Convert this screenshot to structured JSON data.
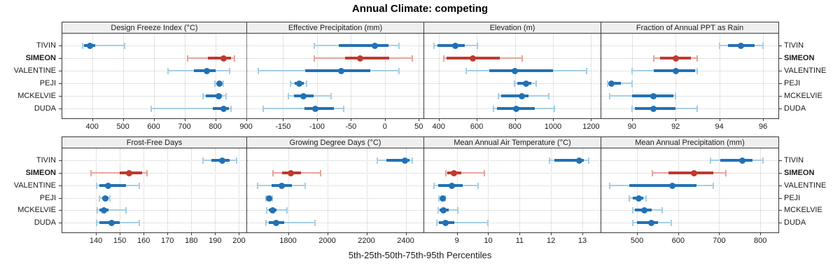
{
  "title": "Annual Climate: competing",
  "footer": "5th-25th-50th-75th-95th Percentiles",
  "percentile_keys": [
    "p5",
    "p25",
    "p50",
    "p75",
    "p95"
  ],
  "sites": [
    {
      "name": "TIVIN",
      "bold": false,
      "highlight": false
    },
    {
      "name": "SIMEON",
      "bold": true,
      "highlight": true
    },
    {
      "name": "VALENTINE",
      "bold": false,
      "highlight": false
    },
    {
      "name": "PEJI",
      "bold": false,
      "highlight": false
    },
    {
      "name": "MCKELVIE",
      "bold": false,
      "highlight": false
    },
    {
      "name": "DUDA",
      "bold": false,
      "highlight": false
    }
  ],
  "colors": {
    "blue": "#2171b5",
    "blue_light": "#a6cee3",
    "red": "#bf3a2e",
    "red_light": "#e4a59d",
    "grid": "#c9c9c9",
    "border": "#3a3a3a",
    "header_bg": "#efefef",
    "text": "#1a1a1a"
  },
  "chart_data": [
    {
      "type": "dot-whisker",
      "title": "Design Freeze Index (°C)",
      "xlim": [
        303,
        901
      ],
      "ticks": [
        400,
        500,
        600,
        700,
        800,
        900
      ],
      "series": [
        {
          "site": "TIVIN",
          "values": [
            368,
            373,
            392,
            409,
            505
          ]
        },
        {
          "site": "SIMEON",
          "values": [
            710,
            775,
            828,
            850,
            862
          ]
        },
        {
          "site": "VALENTINE",
          "values": [
            647,
            731,
            772,
            802,
            847
          ]
        },
        {
          "site": "PEJI",
          "values": [
            798,
            806,
            814,
            820,
            825
          ]
        },
        {
          "site": "MCKELVIE",
          "values": [
            760,
            770,
            811,
            821,
            835
          ]
        },
        {
          "site": "DUDA",
          "values": [
            592,
            791,
            827,
            844,
            851
          ]
        }
      ]
    },
    {
      "type": "dot-whisker",
      "title": "Effective Precipitation (mm)",
      "xlim": [
        -203,
        57
      ],
      "ticks": [
        -150,
        -100,
        -50,
        0,
        50
      ],
      "series": [
        {
          "site": "TIVIN",
          "values": [
            -104,
            -68,
            -15,
            5,
            21
          ]
        },
        {
          "site": "SIMEON",
          "values": [
            -104,
            -59,
            -36,
            6,
            41
          ]
        },
        {
          "site": "VALENTINE",
          "values": [
            -187,
            -117,
            -64,
            -21,
            21
          ]
        },
        {
          "site": "PEJI",
          "values": [
            -139,
            -133,
            -126,
            -119,
            -115
          ]
        },
        {
          "site": "MCKELVIE",
          "values": [
            -142,
            -134,
            -120,
            -105,
            -79
          ]
        },
        {
          "site": "DUDA",
          "values": [
            -179,
            -118,
            -102,
            -75,
            -61
          ]
        }
      ]
    },
    {
      "type": "dot-whisker",
      "title": "Elevation (m)",
      "xlim": [
        324,
        1250
      ],
      "ticks": [
        400,
        600,
        800,
        1000,
        1200
      ],
      "series": [
        {
          "site": "TIVIN",
          "values": [
            376,
            392,
            487,
            538,
            602
          ]
        },
        {
          "site": "SIMEON",
          "values": [
            428,
            442,
            581,
            721,
            837
          ]
        },
        {
          "site": "VALENTINE",
          "values": [
            546,
            666,
            800,
            1001,
            1178
          ]
        },
        {
          "site": "PEJI",
          "values": [
            798,
            812,
            857,
            885,
            912
          ]
        },
        {
          "site": "MCKELVIE",
          "values": [
            712,
            727,
            837,
            873,
            977
          ]
        },
        {
          "site": "DUDA",
          "values": [
            688,
            705,
            806,
            903,
            1007
          ]
        }
      ]
    },
    {
      "type": "dot-whisker",
      "title": "Fraction of Annual PPT as Rain",
      "xlim": [
        88.6,
        96.7
      ],
      "ticks": [
        90,
        92,
        94,
        96
      ],
      "series": [
        {
          "site": "TIVIN",
          "values": [
            94,
            94.4,
            95,
            95.6,
            96
          ]
        },
        {
          "site": "SIMEON",
          "values": [
            91,
            91.3,
            92,
            92.7,
            93
          ]
        },
        {
          "site": "VALENTINE",
          "values": [
            90,
            91,
            92,
            92.9,
            93
          ]
        },
        {
          "site": "PEJI",
          "values": [
            88.9,
            88.95,
            89.05,
            89.5,
            90
          ]
        },
        {
          "site": "MCKELVIE",
          "values": [
            89,
            90,
            91,
            91.9,
            92
          ]
        },
        {
          "site": "DUDA",
          "values": [
            90,
            90.15,
            91,
            92,
            93
          ]
        }
      ]
    },
    {
      "type": "dot-whisker",
      "title": "Frost-Free Days",
      "xlim": [
        125.9,
        203.1
      ],
      "ticks": [
        140,
        150,
        160,
        170,
        180,
        190,
        200
      ],
      "series": [
        {
          "site": "TIVIN",
          "values": [
            185,
            188.5,
            193,
            196,
            199
          ]
        },
        {
          "site": "SIMEON",
          "values": [
            138,
            150,
            154,
            159.5,
            161.5
          ]
        },
        {
          "site": "VALENTINE",
          "values": [
            140.3,
            141.5,
            145,
            152.5,
            158.3
          ]
        },
        {
          "site": "PEJI",
          "values": [
            141.5,
            142.5,
            144,
            145.4,
            146
          ]
        },
        {
          "site": "MCKELVIE",
          "values": [
            140.5,
            141.5,
            143.4,
            145.4,
            152.5
          ]
        },
        {
          "site": "DUDA",
          "values": [
            140.3,
            141.5,
            146.5,
            150,
            158.3
          ]
        }
      ]
    },
    {
      "type": "dot-whisker",
      "title": "Growing Degree Days (°C)",
      "xlim": [
        1591,
        2491
      ],
      "ticks": [
        1800,
        2000,
        2200,
        2400
      ],
      "series": [
        {
          "site": "TIVIN",
          "values": [
            2256,
            2302,
            2398,
            2420,
            2433
          ]
        },
        {
          "site": "SIMEON",
          "values": [
            1723,
            1770,
            1815,
            1865,
            1966
          ]
        },
        {
          "site": "VALENTINE",
          "values": [
            1646,
            1717,
            1768,
            1818,
            1886
          ]
        },
        {
          "site": "PEJI",
          "values": [
            1688,
            1695,
            1703,
            1712,
            1721
          ]
        },
        {
          "site": "MCKELVIE",
          "values": [
            1691,
            1700,
            1723,
            1741,
            1794
          ]
        },
        {
          "site": "DUDA",
          "values": [
            1688,
            1700,
            1738,
            1782,
            1936
          ]
        }
      ]
    },
    {
      "type": "dot-whisker",
      "title": "Mean Annual Air Temperature (°C)",
      "xlim": [
        7.96,
        13.58
      ],
      "ticks": [
        9,
        10,
        11,
        12,
        13
      ],
      "series": [
        {
          "site": "TIVIN",
          "values": [
            11.95,
            12.1,
            12.9,
            13.05,
            13.2
          ]
        },
        {
          "site": "SIMEON",
          "values": [
            8.65,
            8.7,
            8.9,
            9.15,
            9.87
          ]
        },
        {
          "site": "VALENTINE",
          "values": [
            8.27,
            8.41,
            8.83,
            9.19,
            9.67
          ]
        },
        {
          "site": "PEJI",
          "values": [
            8.42,
            8.47,
            8.55,
            8.6,
            8.64
          ]
        },
        {
          "site": "MCKELVIE",
          "values": [
            8.4,
            8.45,
            8.58,
            8.74,
            9.02
          ]
        },
        {
          "site": "DUDA",
          "values": [
            8.37,
            8.42,
            8.65,
            8.93,
            10.0
          ]
        }
      ]
    },
    {
      "type": "dot-whisker",
      "title": "Mean Annual Precipitation (mm)",
      "xlim": [
        413,
        844
      ],
      "ticks": [
        500,
        600,
        700,
        800
      ],
      "series": [
        {
          "site": "TIVIN",
          "values": [
            679,
            702,
            757,
            781,
            806
          ]
        },
        {
          "site": "SIMEON",
          "values": [
            537,
            577,
            638,
            685,
            716
          ]
        },
        {
          "site": "VALENTINE",
          "values": [
            433,
            481,
            586,
            645,
            686
          ]
        },
        {
          "site": "PEJI",
          "values": [
            481,
            490,
            504,
            515,
            522
          ]
        },
        {
          "site": "MCKELVIE",
          "values": [
            489,
            495,
            518,
            535,
            562
          ]
        },
        {
          "site": "DUDA",
          "values": [
            490,
            500,
            535,
            551,
            584
          ]
        }
      ]
    }
  ]
}
